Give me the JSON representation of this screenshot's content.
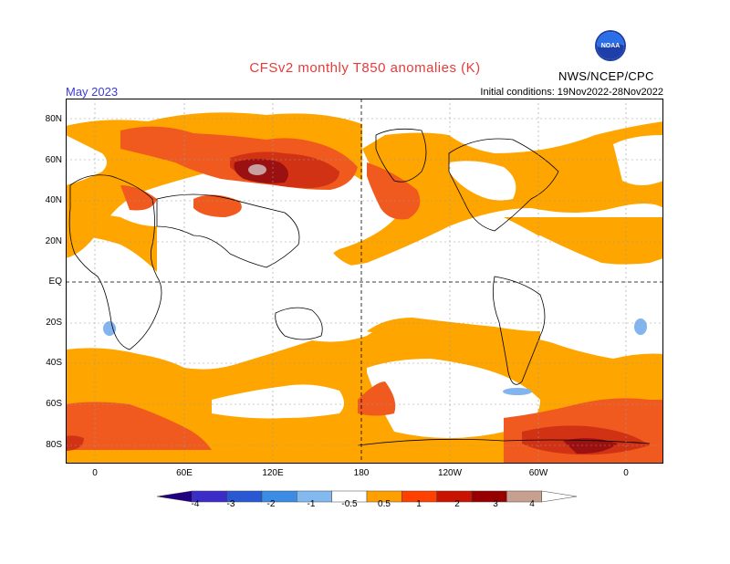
{
  "header": {
    "title": "CFSv2 monthly T850 anomalies (K)",
    "month": "May 2023",
    "initial_conditions": "Initial conditions: 19Nov2022-28Nov2022",
    "agency": "NWS/NCEP/CPC",
    "logo_text": "NOAA"
  },
  "axes": {
    "lat_labels": [
      "80N",
      "60N",
      "40N",
      "20N",
      "EQ",
      "20S",
      "40S",
      "60S",
      "80S"
    ],
    "lon_labels": [
      "0",
      "60E",
      "120E",
      "180",
      "120W",
      "60W",
      "0"
    ]
  },
  "legend": {
    "tick_labels": [
      "-4",
      "-3",
      "-2",
      "-1",
      "-0.5",
      "0.5",
      "1",
      "2",
      "3",
      "4"
    ],
    "colors": [
      "#200080",
      "#3c2cc8",
      "#2858d2",
      "#3c8ce6",
      "#82baf0",
      "#ffffff",
      "#ffa000",
      "#ff4000",
      "#c81400",
      "#960000",
      "#c8a090",
      "#ffffff"
    ]
  },
  "colors": {
    "anom_05_1": "#ffa500",
    "anom_1_2": "#f05a1e",
    "anom_2_3": "#d23214",
    "anom_3_4": "#9b1010",
    "anom_4plus": "#c8a0a0",
    "anom_neg": "#82b4f0"
  }
}
